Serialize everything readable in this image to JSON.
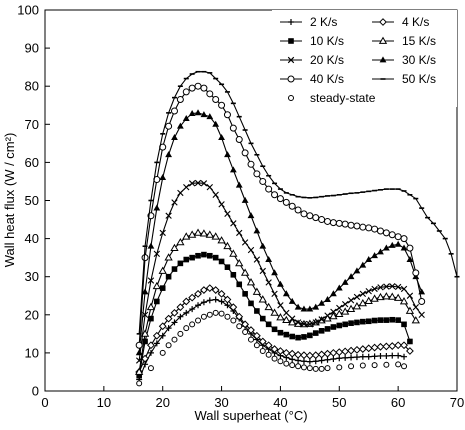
{
  "chart_data": {
    "type": "line",
    "title": "",
    "xlabel": "Wall superheat (°C)",
    "ylabel": "Wall heat flux (W / cm²)",
    "xlim": [
      0,
      70
    ],
    "ylim": [
      0,
      100
    ],
    "x_ticks": [
      0,
      10,
      20,
      30,
      40,
      50,
      60,
      70
    ],
    "y_ticks": [
      0,
      10,
      20,
      30,
      40,
      50,
      60,
      70,
      80,
      90,
      100
    ],
    "grid": false,
    "legend_position": "top-right",
    "series": [
      {
        "name": "2 K/s",
        "marker": "plus",
        "line": true,
        "x": [
          16,
          17,
          18,
          19,
          20,
          21,
          22,
          23,
          24,
          25,
          26,
          27,
          28,
          29,
          30,
          31,
          32,
          33,
          34,
          35,
          36,
          37,
          38,
          39,
          40,
          41,
          42,
          43,
          44,
          45,
          46,
          47,
          48,
          49,
          50,
          51,
          52,
          53,
          54,
          55,
          56,
          57,
          58,
          59,
          60,
          61
        ],
        "y": [
          3,
          7,
          10,
          12.5,
          14.5,
          16.5,
          18,
          19.5,
          20.5,
          21.5,
          22.5,
          23.3,
          23.8,
          24,
          23.5,
          22.5,
          21,
          19,
          17,
          15,
          13.5,
          12,
          11,
          10,
          9.3,
          8.8,
          8.3,
          8,
          7.8,
          7.7,
          7.8,
          8,
          8.2,
          8.4,
          8.6,
          8.7,
          8.8,
          8.9,
          9,
          9,
          9.1,
          9.2,
          9.2,
          9.3,
          9.3,
          9
        ]
      },
      {
        "name": "4 K/s",
        "marker": "diamond",
        "line": true,
        "x": [
          16,
          17,
          18,
          19,
          20,
          21,
          22,
          23,
          24,
          25,
          26,
          27,
          28,
          29,
          30,
          31,
          32,
          33,
          34,
          35,
          36,
          37,
          38,
          39,
          40,
          41,
          42,
          43,
          44,
          45,
          46,
          47,
          48,
          49,
          50,
          51,
          52,
          53,
          54,
          55,
          56,
          57,
          58,
          59,
          60,
          61,
          62
        ],
        "y": [
          5,
          8.5,
          12,
          14.5,
          17,
          19,
          20.5,
          22,
          23.5,
          24.5,
          25.5,
          26.5,
          27,
          26.5,
          25.5,
          24,
          22,
          19.5,
          17.5,
          16,
          14.5,
          13,
          12,
          11,
          10.5,
          10,
          9.8,
          9.5,
          9.4,
          9.3,
          9.4,
          9.6,
          9.8,
          10,
          10.2,
          10.4,
          10.6,
          10.8,
          11,
          11.2,
          11.4,
          11.6,
          11.7,
          11.8,
          12,
          12,
          10.5
        ]
      },
      {
        "name": "10 K/s",
        "marker": "square",
        "line": true,
        "x": [
          16,
          17,
          18,
          19,
          20,
          21,
          22,
          23,
          24,
          25,
          26,
          27,
          28,
          29,
          30,
          31,
          32,
          33,
          34,
          35,
          36,
          37,
          38,
          39,
          40,
          41,
          42,
          43,
          44,
          45,
          46,
          47,
          48,
          49,
          50,
          51,
          52,
          53,
          54,
          55,
          56,
          57,
          58,
          59,
          60,
          61,
          62
        ],
        "y": [
          4,
          13,
          19,
          23.5,
          27,
          30,
          32,
          33.5,
          34.5,
          35,
          35.5,
          35.8,
          35.5,
          35,
          34,
          32.5,
          30.5,
          28,
          25.5,
          23,
          21,
          19,
          17.5,
          16.2,
          15.3,
          14.8,
          14.3,
          14,
          14.2,
          14.6,
          15.2,
          15.8,
          16.3,
          16.8,
          17.2,
          17.5,
          17.8,
          18,
          18.2,
          18.3,
          18.5,
          18.6,
          18.6,
          18.7,
          18.6,
          17.5,
          13
        ]
      },
      {
        "name": "15 K/s",
        "marker": "triangle-open",
        "line": true,
        "x": [
          16,
          17,
          18,
          19,
          20,
          21,
          22,
          23,
          24,
          25,
          26,
          27,
          28,
          29,
          30,
          31,
          32,
          33,
          34,
          35,
          36,
          37,
          38,
          39,
          40,
          41,
          42,
          43,
          44,
          45,
          46,
          47,
          48,
          49,
          50,
          51,
          52,
          53,
          54,
          55,
          56,
          57,
          58,
          59,
          60,
          61,
          62,
          63
        ],
        "y": [
          5,
          15,
          22,
          27.5,
          31.5,
          35,
          37.5,
          39,
          40.5,
          41,
          41.5,
          41.3,
          41,
          40.5,
          39.5,
          38,
          36,
          33.5,
          31,
          28.5,
          26,
          24,
          22,
          20.5,
          19.3,
          18.6,
          18,
          17.6,
          17.5,
          17.6,
          18,
          18.5,
          19,
          19.6,
          20.2,
          20.8,
          21.5,
          22.2,
          23,
          23.6,
          24.2,
          24.6,
          24.8,
          24.7,
          24.4,
          23.5,
          21,
          18.5
        ]
      },
      {
        "name": "20 K/s",
        "marker": "x",
        "line": true,
        "x": [
          16,
          17,
          18,
          19,
          20,
          21,
          22,
          23,
          24,
          25,
          26,
          27,
          28,
          29,
          30,
          31,
          32,
          33,
          34,
          35,
          36,
          37,
          38,
          39,
          40,
          41,
          42,
          43,
          44,
          45,
          46,
          47,
          48,
          49,
          50,
          51,
          52,
          53,
          54,
          55,
          56,
          57,
          58,
          59,
          60,
          61,
          62,
          63,
          64
        ],
        "y": [
          8,
          20,
          29,
          36,
          41.5,
          46,
          49.5,
          52,
          53.5,
          54.5,
          54.6,
          54.5,
          53.5,
          51.5,
          49,
          46.5,
          44,
          41.5,
          39,
          37,
          34.5,
          31.5,
          28.5,
          25.5,
          22.5,
          20.5,
          19,
          18,
          17.6,
          17.5,
          18,
          18.8,
          19.8,
          20.8,
          21.8,
          22.8,
          23.8,
          24.7,
          25.5,
          26.2,
          26.8,
          27.2,
          27.4,
          27.5,
          27.3,
          26.8,
          25,
          22,
          20
        ]
      },
      {
        "name": "30 K/s",
        "marker": "triangle-filled",
        "line": true,
        "x": [
          16,
          17,
          18,
          19,
          20,
          21,
          22,
          23,
          24,
          25,
          26,
          27,
          28,
          29,
          30,
          31,
          32,
          33,
          34,
          35,
          36,
          37,
          38,
          39,
          40,
          41,
          42,
          43,
          44,
          45,
          46,
          47,
          48,
          49,
          50,
          51,
          52,
          53,
          54,
          55,
          56,
          57,
          58,
          59,
          60,
          61,
          62,
          63,
          64
        ],
        "y": [
          10,
          26,
          38,
          48,
          56,
          62,
          66.5,
          69.5,
          71.5,
          72.8,
          73,
          72.5,
          72,
          70,
          66.5,
          62,
          58,
          54,
          50,
          46,
          42,
          38,
          34.5,
          31,
          28,
          25.5,
          23.5,
          22,
          21.5,
          21.5,
          22,
          23,
          24,
          25.5,
          27,
          28.5,
          30,
          31.5,
          33,
          34.5,
          35.5,
          36.5,
          37.5,
          38.2,
          38.5,
          37.5,
          34.5,
          30,
          26
        ]
      },
      {
        "name": "40 K/s",
        "marker": "circle-open",
        "line": true,
        "x": [
          16,
          17,
          18,
          19,
          20,
          21,
          22,
          23,
          24,
          25,
          26,
          27,
          28,
          29,
          30,
          31,
          32,
          33,
          34,
          35,
          36,
          37,
          38,
          39,
          40,
          41,
          42,
          43,
          44,
          45,
          46,
          47,
          48,
          49,
          50,
          51,
          52,
          53,
          54,
          55,
          56,
          57,
          58,
          59,
          60,
          61,
          62,
          63,
          64
        ],
        "y": [
          12,
          35,
          46,
          55.5,
          64,
          69.5,
          73.5,
          76.5,
          78.5,
          79.5,
          80,
          79.5,
          78,
          76.5,
          75,
          72.5,
          69,
          66,
          62.5,
          59.5,
          57,
          55,
          53,
          51.5,
          50.5,
          49.5,
          48.5,
          47.5,
          46.5,
          46,
          45.5,
          45,
          44.5,
          44.2,
          44,
          43.8,
          43.5,
          43.3,
          43,
          42.8,
          42.5,
          42,
          41.5,
          41,
          40.5,
          40,
          37.5,
          31,
          23.5
        ]
      },
      {
        "name": "50 K/s",
        "marker": "dash",
        "line": true,
        "x": [
          16,
          17,
          18,
          19,
          20,
          21,
          22,
          23,
          24,
          25,
          26,
          27,
          28,
          29,
          30,
          31,
          32,
          33,
          34,
          35,
          36,
          37,
          38,
          39,
          40,
          41,
          42,
          43,
          44,
          45,
          46,
          47,
          48,
          49,
          50,
          51,
          52,
          53,
          54,
          55,
          56,
          57,
          58,
          59,
          60,
          61,
          62,
          63,
          64,
          65,
          66,
          67,
          68,
          69,
          70
        ],
        "y": [
          15,
          38,
          50,
          60,
          67.5,
          73,
          77,
          80,
          82,
          83.2,
          83.8,
          83.8,
          83.5,
          82,
          80.5,
          78.5,
          75.5,
          72,
          68.5,
          65,
          62,
          59,
          56.5,
          54.5,
          53,
          52,
          51.5,
          51,
          50.8,
          50.7,
          50.8,
          51,
          51.2,
          51.3,
          51.5,
          51.7,
          51.9,
          52,
          52.2,
          52.4,
          52.6,
          52.8,
          53,
          53,
          53,
          52.5,
          51.5,
          50.5,
          48,
          45.5,
          44,
          42,
          40,
          36,
          30
        ]
      },
      {
        "name": "steady-state",
        "marker": "circle-small",
        "line": false,
        "x": [
          16,
          18,
          20,
          21,
          22,
          23,
          24,
          25,
          26,
          27,
          28,
          29,
          30,
          31,
          32,
          33,
          34,
          35,
          36,
          37,
          38,
          39,
          40,
          41,
          42,
          43,
          44,
          45,
          46,
          47,
          48,
          50,
          52,
          54,
          56,
          58,
          60,
          61
        ],
        "y": [
          2,
          6,
          10,
          12,
          13.5,
          15,
          16.5,
          17.5,
          18.5,
          19.5,
          20,
          20.5,
          20.3,
          19.5,
          18.5,
          17,
          15.5,
          13.5,
          12,
          10.5,
          9.5,
          8.5,
          7.8,
          7.2,
          6.8,
          6.5,
          6.2,
          6,
          5.8,
          5.8,
          6,
          6.2,
          6.5,
          6.7,
          6.8,
          6.9,
          7,
          6.5
        ]
      }
    ]
  }
}
